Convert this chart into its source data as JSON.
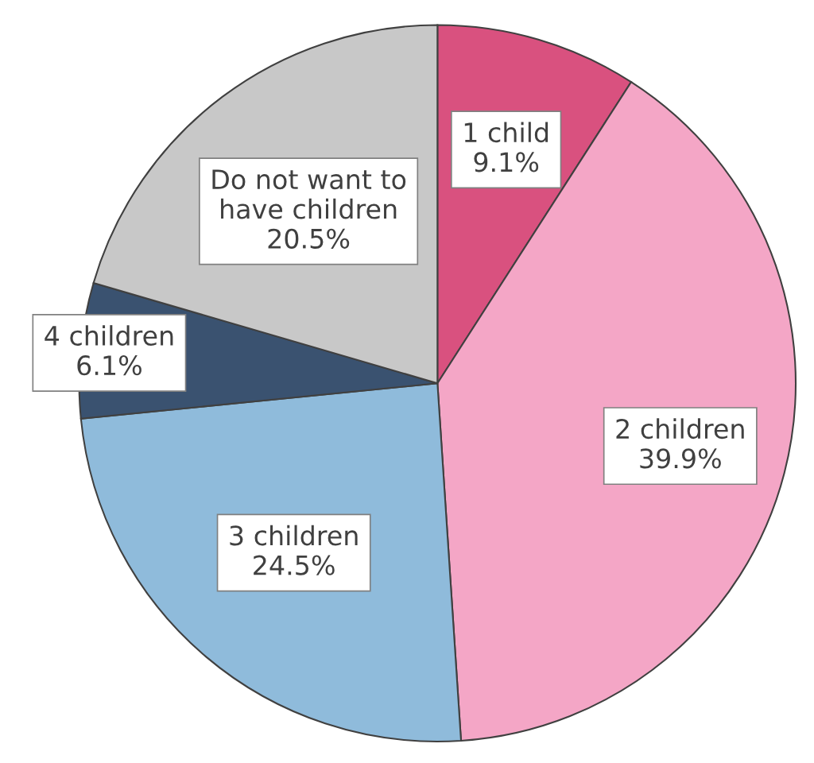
{
  "chart_data": {
    "type": "pie",
    "categories": [
      "1 child",
      "2 children",
      "3 children",
      "4 children",
      "Do not want to\nhave children"
    ],
    "values": [
      9.1,
      39.9,
      24.5,
      6.1,
      20.5
    ],
    "value_labels": [
      "9.1%",
      "39.9%",
      "24.5%",
      "6.1%",
      "20.5%"
    ],
    "colors": [
      "#d9517f",
      "#f4a6c6",
      "#8fbbdb",
      "#3a5270",
      "#c8c8c8"
    ]
  }
}
